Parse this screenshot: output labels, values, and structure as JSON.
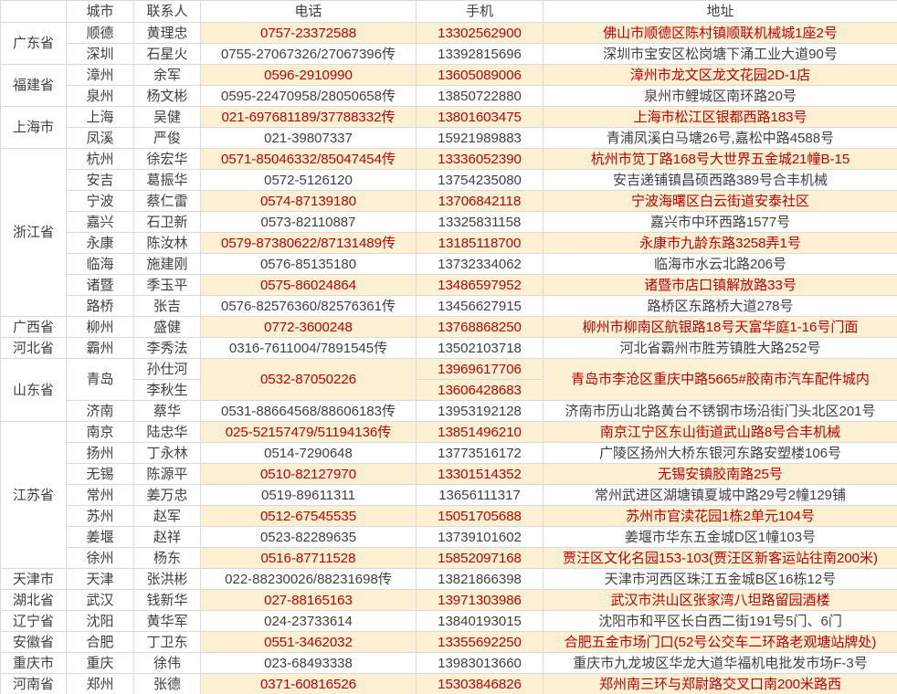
{
  "colors": {
    "stripe_background": "#fdf0d3",
    "stripe_text": "#bf0000",
    "normal_text": "#3f3f3f",
    "grid_line": "#d9d9d9"
  },
  "table": {
    "headers": {
      "province": "",
      "city": "城市",
      "contact": "联系人",
      "phone": "电话",
      "mobile": "手机",
      "address": "地址"
    },
    "rows": [
      {
        "province": "广东省",
        "province_span": 2,
        "city": "顺德",
        "contact": "黄理忠",
        "phone": "0757-23372588",
        "mobile": "13302562900",
        "address": "佛山市顺德区陈村镇顺联机械城1座2号",
        "highlight": true
      },
      {
        "city": "深圳",
        "contact": "石星火",
        "phone": "0755-27067326/27067396传",
        "mobile": "13392815696",
        "address": "深圳市宝安区松岗塘下涌工业大道90号",
        "highlight": false
      },
      {
        "province": "福建省",
        "province_span": 2,
        "city": "漳州",
        "contact": "余军",
        "phone": "0596-2910990",
        "mobile": "13605089006",
        "address": "漳州市龙文区龙文花园2D-1店",
        "highlight": true
      },
      {
        "city": "泉州",
        "contact": "杨文彬",
        "phone": "0595-22470958/28050658传",
        "mobile": "13850722880",
        "address": "泉州市鲤城区南环路20号",
        "highlight": false
      },
      {
        "province": "上海市",
        "province_span": 2,
        "city": "上海",
        "contact": "吴健",
        "phone": "021-697681189/37788332传",
        "mobile": "13801603475",
        "address": "上海市松江区银都西路183号",
        "highlight": true
      },
      {
        "city": "凤溪",
        "contact": "严俊",
        "phone": "021-39807337",
        "mobile": "15921989883",
        "address": "青浦凤溪白马塘26号,嘉松中路4588号",
        "highlight": false
      },
      {
        "province": "浙江省",
        "province_span": 8,
        "city": "杭州",
        "contact": "徐宏华",
        "phone": "0571-85046332/85047454传",
        "mobile": "13336052390",
        "address": "杭州市笕丁路168号大世界五金城21幢B-15",
        "highlight": true
      },
      {
        "city": "安吉",
        "contact": "葛振华",
        "phone": "0572-5126120",
        "mobile": "13754235080",
        "address": "安吉递铺镇昌硕西路389号合丰机械",
        "highlight": false
      },
      {
        "city": "宁波",
        "contact": "蔡仁雷",
        "phone": "0574-87139180",
        "mobile": "13706842118",
        "address": "宁波海曙区白云街道安泰社区",
        "highlight": true
      },
      {
        "city": "嘉兴",
        "contact": "石卫新",
        "phone": "0573-82110887",
        "mobile": "13325831158",
        "address": "嘉兴市中环西路1577号",
        "highlight": false
      },
      {
        "city": "永康",
        "contact": "陈汝林",
        "phone": "0579-87380622/87131489传",
        "mobile": "13185118700",
        "address": "永康市九龄东路3258弄1号",
        "highlight": true
      },
      {
        "city": "临海",
        "contact": "施建刚",
        "phone": "0576-85135180",
        "mobile": "13732334062",
        "address": "临海市水云北路206号",
        "highlight": false
      },
      {
        "city": "诸暨",
        "contact": "季玉平",
        "phone": "0575-86024864",
        "mobile": "13486597952",
        "address": "诸暨市店口镇解放路33号",
        "highlight": true
      },
      {
        "city": "路桥",
        "contact": "张吉",
        "phone": "0576-82576360/82576361传",
        "mobile": "13456627915",
        "address": "路桥区东路桥大道278号",
        "highlight": false
      },
      {
        "province": "广西省",
        "province_span": 1,
        "city": "柳州",
        "contact": "盛健",
        "phone": "0772-3600248",
        "mobile": "13768868250",
        "address": "柳州市柳南区航银路18号天富华庭1-16号门面",
        "highlight": true
      },
      {
        "province": "河北省",
        "province_span": 1,
        "city": "霸州",
        "contact": "李秀法",
        "phone": "0316-7611004/7891545传",
        "mobile": "13502103718",
        "address": "河北省霸州市胜芳镇胜大路252号",
        "highlight": false
      },
      {
        "province": "山东省",
        "province_span": 3,
        "city": "青岛",
        "city_span": 2,
        "contact": "孙仕河",
        "phone": "0532-87050226",
        "phone_span": 2,
        "mobile": "13969617706",
        "address": "青岛市李沧区重庆中路5665#胶南市汽车配件城内",
        "address_span": 2,
        "highlight": true
      },
      {
        "contact": "李秋生",
        "mobile": "13606428683",
        "highlight": true
      },
      {
        "city": "济南",
        "contact": "蔡华",
        "phone": "0531-88664568/88606183传",
        "mobile": "13953192128",
        "address": "济南市历山北路黄台不锈钢市场沿街门头北区201号",
        "highlight": false
      },
      {
        "province": "江苏省",
        "province_span": 7,
        "city": "南京",
        "contact": "陆忠华",
        "phone": "025-52157479/51194136传",
        "mobile": "13851496210",
        "address": "南京江宁区东山街道武山路8号合丰机械",
        "highlight": true
      },
      {
        "city": "扬州",
        "contact": "丁永林",
        "phone": "0514-7290648",
        "mobile": "13773516172",
        "address": "广陵区扬州大桥东银河东路安塑楼106号",
        "highlight": false
      },
      {
        "city": "无锡",
        "contact": "陈源平",
        "phone": "0510-82127970",
        "mobile": "13301514352",
        "address": "无锡安镇胶南路25号",
        "highlight": true
      },
      {
        "city": "常州",
        "contact": "姜万忠",
        "phone": "0519-89611311",
        "mobile": "13656111317",
        "address": "常州武进区湖塘镇夏城中路29号2幢129铺",
        "highlight": false
      },
      {
        "city": "苏州",
        "contact": "赵军",
        "phone": "0512-67545535",
        "mobile": "15051705688",
        "address": "苏州市官渎花园1栋2单元104号",
        "highlight": true
      },
      {
        "city": "姜堰",
        "contact": "赵祥",
        "phone": "0523-82289635",
        "mobile": "13739101602",
        "address": "姜堰市华东五金城D区1幢103号",
        "highlight": false
      },
      {
        "city": "徐州",
        "contact": "杨东",
        "phone": "0516-87711528",
        "mobile": "15852097168",
        "address": "贾汪区文化名园153-103(贾汪区新客运站往南200米)",
        "highlight": true
      },
      {
        "province": "天津市",
        "province_span": 1,
        "city": "天津",
        "contact": "张洪彬",
        "phone": "022-88230026/88231698传",
        "mobile": "13821866398",
        "address": "天津市河西区珠江五金城B区16栋12号",
        "highlight": false
      },
      {
        "province": "湖北省",
        "province_span": 1,
        "city": "武汉",
        "contact": "钱新华",
        "phone": "027-88165163",
        "mobile": "13971303986",
        "address": "武汉市洪山区张家湾八坦路留园酒楼",
        "highlight": true
      },
      {
        "province": "辽宁省",
        "province_span": 1,
        "city": "沈阳",
        "contact": "黄华军",
        "phone": "024-23733614",
        "mobile": "13840193015",
        "address": "沈阳市和平区长白西二街191号5门、6门",
        "highlight": false
      },
      {
        "province": "安徽省",
        "province_span": 1,
        "city": "合肥",
        "contact": "丁卫东",
        "phone": "0551-3462032",
        "mobile": "13355692250",
        "address": "合肥五金市场门口(52号公交车二环路老观塘站牌处)",
        "highlight": true
      },
      {
        "province": "重庆市",
        "province_span": 1,
        "city": "重庆",
        "contact": "徐伟",
        "phone": "023-68493338",
        "mobile": "13983013660",
        "address": "重庆市九龙坡区华龙大道华福机电批发市场F-3号",
        "highlight": false
      },
      {
        "province": "河南省",
        "province_span": 1,
        "city": "郑州",
        "contact": "张德",
        "phone": "0371-60816526",
        "mobile": "15303846826",
        "address": "郑州南三环与郑尉路交叉口南200米路西",
        "highlight": true
      }
    ]
  }
}
